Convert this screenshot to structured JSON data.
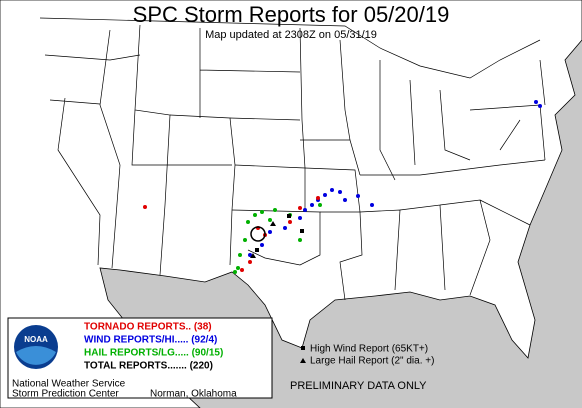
{
  "header": {
    "title": "SPC Storm Reports for 05/20/19",
    "subtitle": "Map updated at 2308Z on 05/31/19"
  },
  "legend": {
    "logo": "NOAA",
    "items": [
      {
        "label": "TORNADO REPORTS.. (38)",
        "color": "#e00000"
      },
      {
        "label": "WIND REPORTS/HI..... (92/4)",
        "color": "#0000e0"
      },
      {
        "label": "HAIL REPORTS/LG..... (90/15)",
        "color": "#00b000"
      },
      {
        "label": "TOTAL REPORTS....... (220)",
        "color": "#000000"
      }
    ],
    "agency": "National Weather Service",
    "center": "Storm Prediction Center",
    "location": "Norman, Oklahoma"
  },
  "key": {
    "high_wind": "High Wind Report (65KT+)",
    "large_hail": "Large Hail Report (2\" dia. +)"
  },
  "notice": "PRELIMINARY DATA ONLY"
}
